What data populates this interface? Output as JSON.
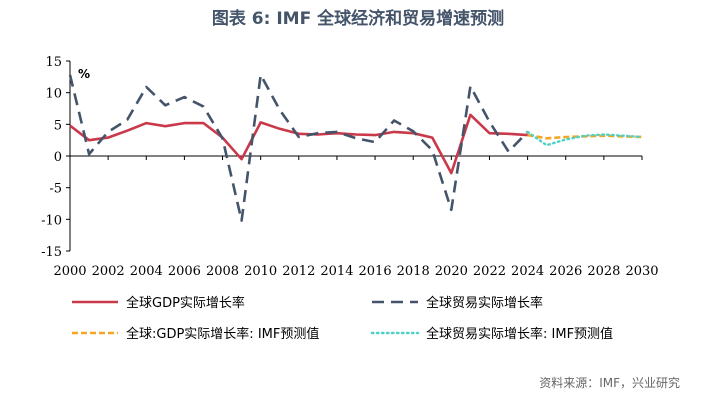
{
  "title": "图表 6:  IMF 全球经济和贸易增速预测",
  "source": "资料来源：IMF，兴业研究",
  "colors": {
    "gdp_actual": "#c9394a",
    "trade_actual": "#44546a",
    "gdp_forecast": "#f5a623",
    "trade_forecast": "#4fd1c5"
  },
  "chart_data": {
    "type": "line",
    "unit_label": "%",
    "ylim": [
      -15,
      15
    ],
    "yticks": [
      15,
      10,
      5,
      0,
      -5,
      -10,
      -15
    ],
    "xlim": [
      2000,
      2030
    ],
    "xticks": [
      2000,
      2002,
      2004,
      2006,
      2008,
      2010,
      2012,
      2014,
      2016,
      2018,
      2020,
      2022,
      2024,
      2026,
      2028,
      2030
    ],
    "grid": false,
    "legend_position": "bottom",
    "series": [
      {
        "key": "gdp_actual",
        "name": "全球GDP实际增长率",
        "style": "solid",
        "x": [
          2000,
          2001,
          2002,
          2003,
          2004,
          2005,
          2006,
          2007,
          2008,
          2009,
          2010,
          2011,
          2012,
          2013,
          2014,
          2015,
          2016,
          2017,
          2018,
          2019,
          2020,
          2021,
          2022,
          2023,
          2024
        ],
        "y": [
          4.8,
          2.5,
          2.9,
          4.0,
          5.2,
          4.7,
          5.2,
          5.2,
          2.9,
          -0.5,
          5.3,
          4.3,
          3.5,
          3.4,
          3.6,
          3.4,
          3.3,
          3.8,
          3.6,
          2.9,
          -2.7,
          6.5,
          3.6,
          3.5,
          3.3
        ]
      },
      {
        "key": "trade_actual",
        "name": "全球贸易实际增长率",
        "style": "dashed",
        "x": [
          2000,
          2001,
          2002,
          2003,
          2004,
          2005,
          2006,
          2007,
          2008,
          2009,
          2010,
          2011,
          2012,
          2013,
          2014,
          2015,
          2016,
          2017,
          2018,
          2019,
          2020,
          2021,
          2022,
          2023,
          2024
        ],
        "y": [
          12.8,
          0.3,
          3.8,
          5.7,
          10.9,
          8.0,
          9.3,
          7.8,
          2.8,
          -10.2,
          12.8,
          7.3,
          3.0,
          3.6,
          3.8,
          2.8,
          2.2,
          5.6,
          3.9,
          0.9,
          -8.5,
          11.0,
          5.4,
          0.7,
          3.8
        ]
      },
      {
        "key": "gdp_forecast",
        "name": "全球:GDP实际增长率: IMF预测值",
        "style": "dash-short",
        "x": [
          2024,
          2025,
          2026,
          2027,
          2028,
          2029,
          2030
        ],
        "y": [
          3.3,
          2.8,
          3.0,
          3.1,
          3.2,
          3.1,
          3.0
        ]
      },
      {
        "key": "trade_forecast",
        "name": "全球贸易实际增长率: IMF预测值",
        "style": "dotted",
        "x": [
          2024,
          2025,
          2026,
          2027,
          2028,
          2029,
          2030
        ],
        "y": [
          3.8,
          1.7,
          2.6,
          3.2,
          3.4,
          3.2,
          3.0
        ]
      }
    ]
  }
}
